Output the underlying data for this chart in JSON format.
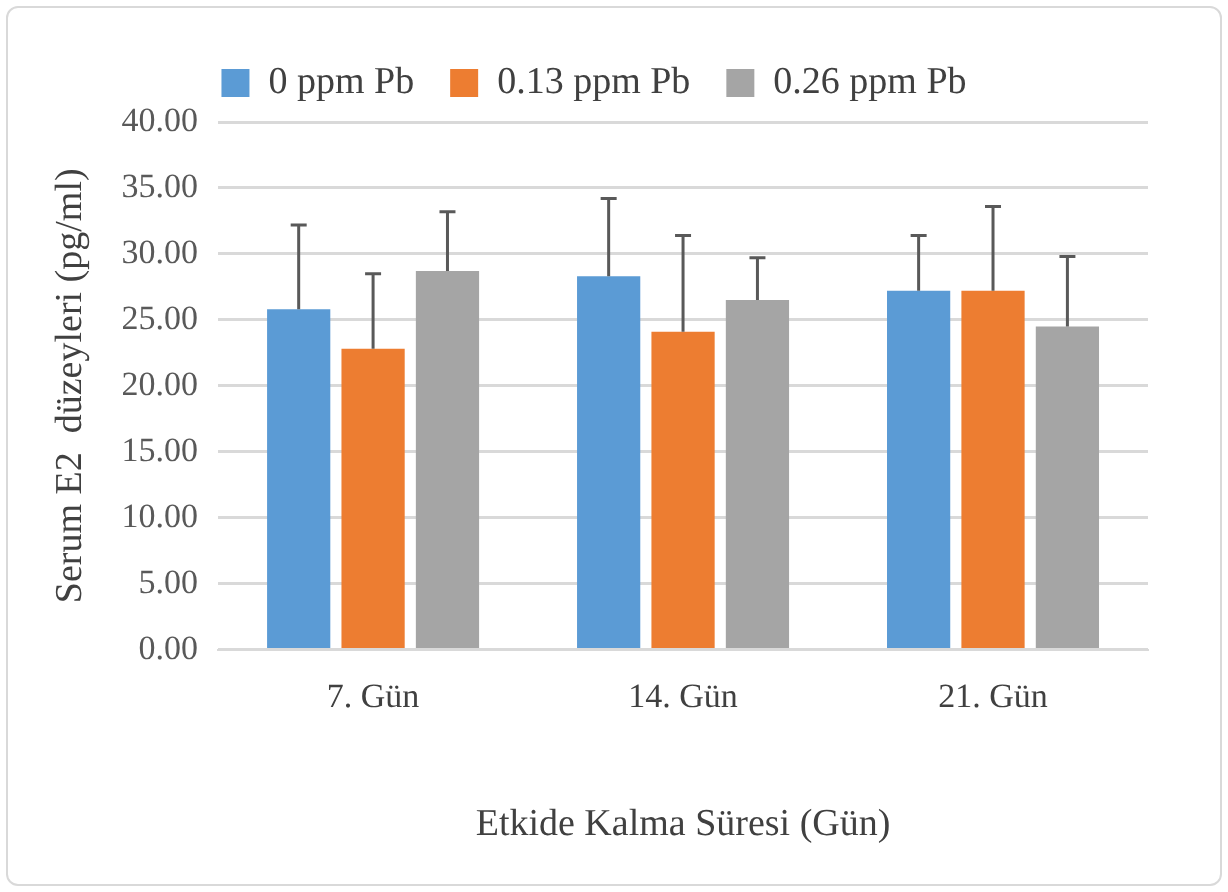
{
  "chart_data": {
    "type": "bar",
    "ylabel": "Serum E2  düzeyleri (pg/ml)",
    "xlabel": "Etkide Kalma Süresi (Gün)",
    "categories": [
      "7. Gün",
      "14. Gün",
      "21. Gün"
    ],
    "series": [
      {
        "name": "0 ppm Pb",
        "color": "#5b9bd5",
        "values": [
          25.8,
          28.3,
          27.2
        ],
        "errors": [
          [
            25.8,
            32.2
          ],
          [
            28.3,
            34.2
          ],
          [
            27.2,
            31.4
          ]
        ]
      },
      {
        "name": "0.13 ppm Pb",
        "color": "#ed7d31",
        "values": [
          22.8,
          24.1,
          27.2
        ],
        "errors": [
          [
            22.8,
            28.5
          ],
          [
            24.1,
            31.4
          ],
          [
            27.2,
            33.6
          ]
        ]
      },
      {
        "name": "0.26 ppm Pb",
        "color": "#a5a5a5",
        "values": [
          28.7,
          26.5,
          24.5
        ],
        "errors": [
          [
            28.7,
            33.2
          ],
          [
            26.5,
            29.7
          ],
          [
            24.5,
            29.8
          ]
        ]
      }
    ],
    "ylim": [
      0,
      40
    ],
    "yticks": [
      {
        "value": 0,
        "label": "0.00"
      },
      {
        "value": 5,
        "label": "5.00"
      },
      {
        "value": 10,
        "label": "10.00"
      },
      {
        "value": 15,
        "label": "15.00"
      },
      {
        "value": 20,
        "label": "20.00"
      },
      {
        "value": 25,
        "label": "25.00"
      },
      {
        "value": 30,
        "label": "30.00"
      },
      {
        "value": 35,
        "label": "35.00"
      },
      {
        "value": 40,
        "label": "40.00"
      }
    ],
    "grid": "y",
    "legend": "top"
  }
}
